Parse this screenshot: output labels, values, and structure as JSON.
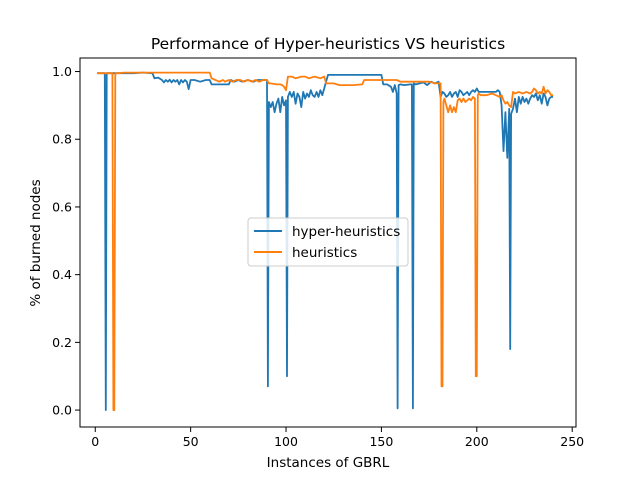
{
  "chart_data": {
    "type": "line",
    "title": "Performance of Hyper-heuristics VS heuristics",
    "xlabel": "Instances of GBRL",
    "ylabel": "% of burned nodes",
    "xlim": [
      -8,
      252
    ],
    "ylim": [
      -0.05,
      1.04
    ],
    "xticks": [
      0,
      50,
      100,
      150,
      200,
      250
    ],
    "yticks": [
      0.0,
      0.2,
      0.4,
      0.6,
      0.8,
      1.0
    ],
    "xtick_labels": [
      "0",
      "50",
      "100",
      "150",
      "200",
      "250"
    ],
    "ytick_labels": [
      "0.0",
      "0.2",
      "0.4",
      "0.6",
      "0.8",
      "1.0"
    ],
    "grid": false,
    "legend_position": "center-right",
    "series": [
      {
        "name": "hyper-heuristics",
        "color": "#1f77b4",
        "points": [
          [
            1,
            0.995
          ],
          [
            3,
            0.995
          ],
          [
            4,
            0.995
          ],
          [
            5,
            0.995
          ],
          [
            5.5,
            0.0
          ],
          [
            6,
            0.995
          ],
          [
            8,
            0.995
          ],
          [
            9,
            0.995
          ],
          [
            10,
            0.995
          ],
          [
            15,
            0.995
          ],
          [
            20,
            0.995
          ],
          [
            25,
            0.997
          ],
          [
            30,
            0.995
          ],
          [
            31,
            0.98
          ],
          [
            33,
            0.982
          ],
          [
            35,
            0.975
          ],
          [
            36,
            0.968
          ],
          [
            37,
            0.975
          ],
          [
            38,
            0.97
          ],
          [
            39,
            0.976
          ],
          [
            40,
            0.968
          ],
          [
            41,
            0.975
          ],
          [
            42,
            0.97
          ],
          [
            43,
            0.975
          ],
          [
            44,
            0.962
          ],
          [
            45,
            0.975
          ],
          [
            46,
            0.968
          ],
          [
            47,
            0.975
          ],
          [
            48,
            0.97
          ],
          [
            49,
            0.948
          ],
          [
            50,
            0.975
          ],
          [
            52,
            0.975
          ],
          [
            55,
            0.97
          ],
          [
            58,
            0.975
          ],
          [
            60,
            0.975
          ],
          [
            61,
            0.962
          ],
          [
            65,
            0.962
          ],
          [
            70,
            0.962
          ],
          [
            71,
            0.975
          ],
          [
            73,
            0.97
          ],
          [
            75,
            0.975
          ],
          [
            77,
            0.97
          ],
          [
            80,
            0.975
          ],
          [
            83,
            0.97
          ],
          [
            85,
            0.975
          ],
          [
            88,
            0.975
          ],
          [
            90,
            0.975
          ],
          [
            90.5,
            0.07
          ],
          [
            91,
            0.91
          ],
          [
            92,
            0.895
          ],
          [
            93,
            0.91
          ],
          [
            94,
            0.88
          ],
          [
            95,
            0.905
          ],
          [
            96,
            0.92
          ],
          [
            97,
            0.88
          ],
          [
            98,
            0.925
          ],
          [
            99,
            0.9
          ],
          [
            100,
            0.915
          ],
          [
            100.5,
            0.1
          ],
          [
            101,
            0.925
          ],
          [
            102,
            0.94
          ],
          [
            103,
            0.925
          ],
          [
            104,
            0.94
          ],
          [
            105,
            0.905
          ],
          [
            106,
            0.935
          ],
          [
            107,
            0.925
          ],
          [
            108,
            0.895
          ],
          [
            109,
            0.94
          ],
          [
            110,
            0.92
          ],
          [
            111,
            0.935
          ],
          [
            112,
            0.925
          ],
          [
            113,
            0.945
          ],
          [
            114,
            0.93
          ],
          [
            115,
            0.925
          ],
          [
            116,
            0.94
          ],
          [
            117,
            0.925
          ],
          [
            118,
            0.945
          ],
          [
            119,
            0.93
          ],
          [
            120,
            0.95
          ],
          [
            121,
            0.97
          ],
          [
            122,
            0.99
          ],
          [
            125,
            0.99
          ],
          [
            130,
            0.99
          ],
          [
            135,
            0.99
          ],
          [
            140,
            0.99
          ],
          [
            145,
            0.99
          ],
          [
            150,
            0.99
          ],
          [
            151,
            0.962
          ],
          [
            153,
            0.962
          ],
          [
            155,
            0.955
          ],
          [
            156,
            0.94
          ],
          [
            157,
            0.96
          ],
          [
            158,
            0.935
          ],
          [
            158.5,
            0.005
          ],
          [
            159,
            0.96
          ],
          [
            160,
            0.962
          ],
          [
            162,
            0.96
          ],
          [
            165,
            0.962
          ],
          [
            166,
            0.962
          ],
          [
            166.5,
            0.005
          ],
          [
            167,
            0.965
          ],
          [
            168,
            0.962
          ],
          [
            170,
            0.965
          ],
          [
            172,
            0.968
          ],
          [
            174,
            0.96
          ],
          [
            175,
            0.965
          ],
          [
            176,
            0.97
          ],
          [
            178,
            0.965
          ],
          [
            180,
            0.97
          ],
          [
            181,
            0.925
          ],
          [
            182,
            0.94
          ],
          [
            183,
            0.935
          ],
          [
            184,
            0.925
          ],
          [
            185,
            0.93
          ],
          [
            186,
            0.94
          ],
          [
            187,
            0.925
          ],
          [
            188,
            0.935
          ],
          [
            189,
            0.94
          ],
          [
            190,
            0.925
          ],
          [
            191,
            0.945
          ],
          [
            192,
            0.94
          ],
          [
            193,
            0.93
          ],
          [
            194,
            0.935
          ],
          [
            195,
            0.94
          ],
          [
            196,
            0.93
          ],
          [
            197,
            0.94
          ],
          [
            198,
            0.945
          ],
          [
            199,
            0.94
          ],
          [
            200,
            0.95
          ],
          [
            201,
            0.94
          ],
          [
            205,
            0.94
          ],
          [
            208,
            0.94
          ],
          [
            210,
            0.94
          ],
          [
            211,
            0.945
          ],
          [
            212,
            0.94
          ],
          [
            213,
            0.9
          ],
          [
            214,
            0.765
          ],
          [
            215,
            0.88
          ],
          [
            216,
            0.745
          ],
          [
            217,
            0.89
          ],
          [
            217.5,
            0.18
          ],
          [
            218,
            0.875
          ],
          [
            219,
            0.89
          ],
          [
            220,
            0.92
          ],
          [
            221,
            0.88
          ],
          [
            222,
            0.925
          ],
          [
            223,
            0.905
          ],
          [
            224,
            0.925
          ],
          [
            225,
            0.91
          ],
          [
            226,
            0.92
          ],
          [
            227,
            0.905
          ],
          [
            228,
            0.92
          ],
          [
            229,
            0.93
          ],
          [
            230,
            0.925
          ],
          [
            231,
            0.935
          ],
          [
            232,
            0.915
          ],
          [
            233,
            0.93
          ],
          [
            234,
            0.905
          ],
          [
            235,
            0.935
          ],
          [
            236,
            0.925
          ],
          [
            237,
            0.9
          ],
          [
            238,
            0.92
          ],
          [
            239,
            0.925
          ],
          [
            240,
            0.925
          ]
        ]
      },
      {
        "name": "heuristics",
        "color": "#ff7f0e",
        "points": [
          [
            1,
            0.995
          ],
          [
            5,
            0.995
          ],
          [
            8,
            0.995
          ],
          [
            9,
            0.995
          ],
          [
            9.5,
            0.0
          ],
          [
            10,
            0.0
          ],
          [
            10.5,
            0.995
          ],
          [
            12,
            0.995
          ],
          [
            15,
            0.997
          ],
          [
            20,
            0.997
          ],
          [
            25,
            0.997
          ],
          [
            30,
            0.997
          ],
          [
            35,
            0.997
          ],
          [
            40,
            0.997
          ],
          [
            45,
            0.997
          ],
          [
            50,
            0.997
          ],
          [
            55,
            0.997
          ],
          [
            60,
            0.997
          ],
          [
            61,
            0.98
          ],
          [
            63,
            0.975
          ],
          [
            65,
            0.97
          ],
          [
            67,
            0.975
          ],
          [
            68,
            0.97
          ],
          [
            70,
            0.975
          ],
          [
            72,
            0.97
          ],
          [
            74,
            0.975
          ],
          [
            76,
            0.975
          ],
          [
            78,
            0.97
          ],
          [
            80,
            0.975
          ],
          [
            82,
            0.97
          ],
          [
            84,
            0.975
          ],
          [
            86,
            0.97
          ],
          [
            88,
            0.975
          ],
          [
            90,
            0.975
          ],
          [
            91,
            0.965
          ],
          [
            92,
            0.965
          ],
          [
            95,
            0.962
          ],
          [
            97,
            0.962
          ],
          [
            98,
            0.96
          ],
          [
            99,
            0.955
          ],
          [
            100,
            0.945
          ],
          [
            101,
            0.985
          ],
          [
            103,
            0.985
          ],
          [
            105,
            0.98
          ],
          [
            108,
            0.985
          ],
          [
            110,
            0.985
          ],
          [
            112,
            0.98
          ],
          [
            115,
            0.985
          ],
          [
            118,
            0.98
          ],
          [
            120,
            0.985
          ],
          [
            121,
            0.965
          ],
          [
            125,
            0.965
          ],
          [
            128,
            0.96
          ],
          [
            130,
            0.96
          ],
          [
            133,
            0.96
          ],
          [
            135,
            0.96
          ],
          [
            140,
            0.962
          ],
          [
            141,
            0.975
          ],
          [
            145,
            0.975
          ],
          [
            150,
            0.975
          ],
          [
            152,
            0.975
          ],
          [
            155,
            0.975
          ],
          [
            158,
            0.975
          ],
          [
            160,
            0.97
          ],
          [
            165,
            0.97
          ],
          [
            170,
            0.97
          ],
          [
            172,
            0.97
          ],
          [
            175,
            0.97
          ],
          [
            178,
            0.965
          ],
          [
            180,
            0.965
          ],
          [
            181,
            0.965
          ],
          [
            181.5,
            0.07
          ],
          [
            182,
            0.07
          ],
          [
            182.5,
            0.91
          ],
          [
            183,
            0.92
          ],
          [
            184,
            0.9
          ],
          [
            185,
            0.88
          ],
          [
            186,
            0.9
          ],
          [
            187,
            0.88
          ],
          [
            188,
            0.895
          ],
          [
            189,
            0.88
          ],
          [
            190,
            0.915
          ],
          [
            191,
            0.92
          ],
          [
            192,
            0.91
          ],
          [
            193,
            0.92
          ],
          [
            194,
            0.91
          ],
          [
            195,
            0.915
          ],
          [
            196,
            0.92
          ],
          [
            197,
            0.915
          ],
          [
            198,
            0.925
          ],
          [
            199,
            0.92
          ],
          [
            199.5,
            0.1
          ],
          [
            200,
            0.1
          ],
          [
            200.5,
            0.93
          ],
          [
            201,
            0.935
          ],
          [
            202,
            0.93
          ],
          [
            205,
            0.93
          ],
          [
            208,
            0.935
          ],
          [
            210,
            0.93
          ],
          [
            212,
            0.925
          ],
          [
            213,
            0.93
          ],
          [
            214,
            0.915
          ],
          [
            215,
            0.905
          ],
          [
            216,
            0.91
          ],
          [
            217,
            0.9
          ],
          [
            218,
            0.895
          ],
          [
            219,
            0.94
          ],
          [
            220,
            0.935
          ],
          [
            222,
            0.94
          ],
          [
            224,
            0.935
          ],
          [
            226,
            0.94
          ],
          [
            228,
            0.935
          ],
          [
            229,
            0.94
          ],
          [
            230,
            0.95
          ],
          [
            231,
            0.945
          ],
          [
            232,
            0.935
          ],
          [
            233,
            0.94
          ],
          [
            234,
            0.935
          ],
          [
            235,
            0.955
          ],
          [
            236,
            0.935
          ],
          [
            237,
            0.945
          ],
          [
            238,
            0.94
          ],
          [
            239,
            0.93
          ],
          [
            240,
            0.93
          ]
        ]
      }
    ]
  }
}
